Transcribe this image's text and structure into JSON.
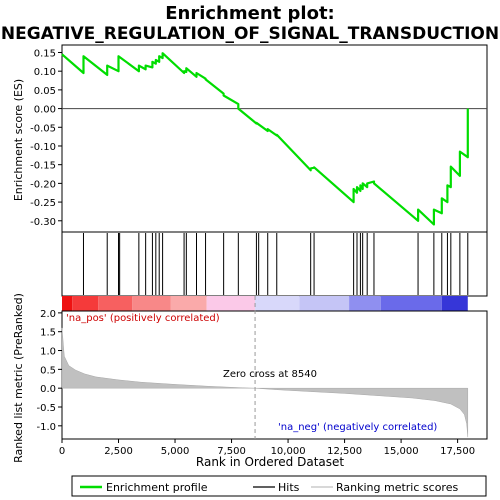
{
  "chart_data": {
    "type": "line",
    "title": "Enrichment plot:",
    "subtitle": "NEGATIVE_REGULATION_OF_SIGNAL_TRANSDUCTION",
    "es_panel": {
      "ylabel": "Enrichment score (ES)",
      "ylim": [
        -0.33,
        0.17
      ],
      "yticks": [
        "0.15",
        "0.10",
        "0.05",
        "0.00",
        "-0.05",
        "-0.10",
        "-0.15",
        "-0.20",
        "-0.25",
        "-0.30"
      ],
      "ytick_values": [
        0.15,
        0.1,
        0.05,
        0.0,
        -0.05,
        -0.1,
        -0.15,
        -0.2,
        -0.25,
        -0.3
      ],
      "series": [
        {
          "name": "Enrichment profile",
          "color": "#00dd00",
          "x": [
            0,
            950,
            950,
            2000,
            2000,
            2500,
            2500,
            3400,
            3400,
            3700,
            3700,
            4000,
            4000,
            4150,
            4150,
            4300,
            4300,
            4450,
            4450,
            5400,
            5400,
            5500,
            5500,
            5950,
            5950,
            6350,
            6350,
            7150,
            7150,
            7800,
            7800,
            8600,
            8600,
            9100,
            9100,
            9500,
            9500,
            11000,
            11000,
            11150,
            11150,
            12900,
            12900,
            13050,
            13050,
            13200,
            13200,
            13300,
            13300,
            13500,
            13500,
            13800,
            13800,
            15750,
            15750,
            16450,
            16450,
            16800,
            16800,
            17050,
            17050,
            17200,
            17200,
            17600,
            17600,
            17950,
            17950
          ],
          "y": [
            0.145,
            0.095,
            0.14,
            0.09,
            0.115,
            0.1,
            0.14,
            0.1,
            0.115,
            0.105,
            0.115,
            0.11,
            0.125,
            0.12,
            0.13,
            0.125,
            0.14,
            0.135,
            0.148,
            0.095,
            0.1,
            0.098,
            0.108,
            0.085,
            0.095,
            0.08,
            0.078,
            0.04,
            0.035,
            0.012,
            0.0,
            -0.04,
            -0.038,
            -0.06,
            -0.055,
            -0.072,
            -0.07,
            -0.165,
            -0.16,
            -0.158,
            -0.157,
            -0.25,
            -0.215,
            -0.225,
            -0.21,
            -0.22,
            -0.205,
            -0.215,
            -0.2,
            -0.21,
            -0.2,
            -0.195,
            -0.2,
            -0.3,
            -0.27,
            -0.31,
            -0.27,
            -0.28,
            -0.24,
            -0.25,
            -0.205,
            -0.21,
            -0.155,
            -0.18,
            -0.115,
            -0.13,
            0.0
          ]
        }
      ]
    },
    "hits": {
      "name": "Hits",
      "x": [
        950,
        2000,
        2500,
        2550,
        3400,
        3700,
        4000,
        4150,
        4300,
        4450,
        5400,
        5500,
        5950,
        6350,
        7150,
        7800,
        8600,
        8700,
        9100,
        9500,
        11000,
        11150,
        12900,
        13050,
        13200,
        13300,
        13500,
        13800,
        15750,
        16450,
        16800,
        17050,
        17200,
        17600,
        17950
      ]
    },
    "ranked_panel": {
      "ylabel": "Ranked list metric (PreRanked)",
      "ylim": [
        -1.35,
        2.05
      ],
      "yticks": [
        "2.0",
        "1.5",
        "1.0",
        "0.5",
        "0.0",
        "-0.5",
        "-1.0"
      ],
      "ytick_values": [
        2.0,
        1.5,
        1.0,
        0.5,
        0.0,
        -0.5,
        -1.0
      ],
      "fill_color": "#c0c0c0",
      "x": [
        0,
        100,
        300,
        600,
        1000,
        1500,
        2500,
        3500,
        5000,
        6500,
        8000,
        8540,
        9500,
        11000,
        12500,
        14000,
        15500,
        16500,
        17200,
        17600,
        17800,
        17900,
        17950
      ],
      "y": [
        1.6,
        0.85,
        0.6,
        0.48,
        0.38,
        0.3,
        0.22,
        0.16,
        0.1,
        0.05,
        0.01,
        0.0,
        -0.04,
        -0.09,
        -0.14,
        -0.2,
        -0.26,
        -0.33,
        -0.42,
        -0.55,
        -0.7,
        -0.95,
        -1.3
      ],
      "pos_label": "'na_pos' (positively correlated)",
      "neg_label": "'na_neg' (negatively correlated)",
      "zero_cross_label": "Zero cross at 8540",
      "zero_cross": 8540
    },
    "xaxis": {
      "xlabel": "Rank in Ordered Dataset",
      "xlim": [
        0,
        18800
      ],
      "xticks": [
        "0",
        "2,500",
        "5,000",
        "7,500",
        "10,000",
        "12,500",
        "15,000",
        "17,500"
      ],
      "xtick_values": [
        0,
        2500,
        5000,
        7500,
        10000,
        12500,
        15000,
        17500
      ]
    },
    "color_bar": {
      "segments": [
        {
          "start": 0,
          "end": 450,
          "color": "#ee1111"
        },
        {
          "start": 450,
          "end": 1600,
          "color": "#f53a3a"
        },
        {
          "start": 1600,
          "end": 3100,
          "color": "#f76060"
        },
        {
          "start": 3100,
          "end": 4800,
          "color": "#f88888"
        },
        {
          "start": 4800,
          "end": 6400,
          "color": "#faaaaa"
        },
        {
          "start": 6400,
          "end": 8540,
          "color": "#fbc9e8"
        },
        {
          "start": 8540,
          "end": 10500,
          "color": "#d8d8fa"
        },
        {
          "start": 10500,
          "end": 12700,
          "color": "#c5c5f6"
        },
        {
          "start": 12700,
          "end": 14100,
          "color": "#8f8ff0"
        },
        {
          "start": 14100,
          "end": 16800,
          "color": "#6a6aea"
        },
        {
          "start": 16800,
          "end": 17950,
          "color": "#3636d8"
        }
      ]
    },
    "legend": [
      {
        "label": "Enrichment profile",
        "color": "#00dd00",
        "style": "thick-line"
      },
      {
        "label": "Hits",
        "color": "#000000",
        "style": "thin-line"
      },
      {
        "label": "Ranking metric scores",
        "color": "#c0c0c0",
        "style": "thin-line"
      }
    ]
  }
}
